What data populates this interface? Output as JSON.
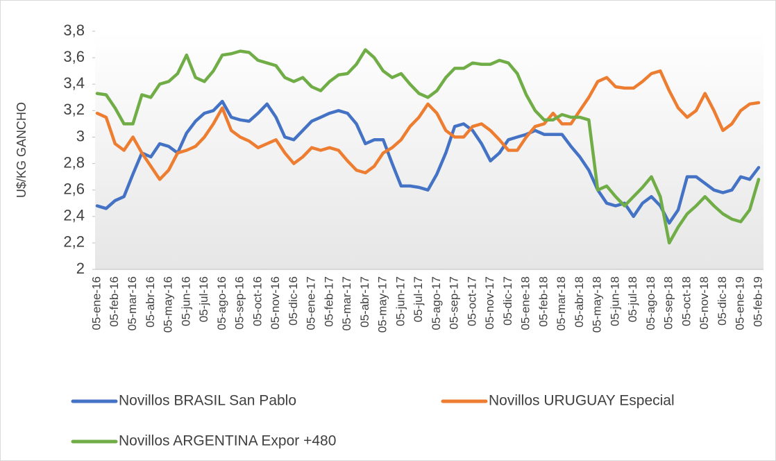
{
  "chart_data": {
    "type": "line",
    "y_label": "U$/KG GANCHO",
    "categories": [
      "05-ene-16",
      null,
      "05-feb-16",
      null,
      "05-mar-16",
      null,
      "05-abr-16",
      null,
      "05-may-16",
      null,
      "05-jun-16",
      null,
      "05-jul-16",
      null,
      "05-ago-16",
      null,
      "05-sep-16",
      null,
      "05-oct-16",
      null,
      "05-nov-16",
      null,
      "05-dic-16",
      null,
      "05-ene-17",
      null,
      "05-feb-17",
      null,
      "05-mar-17",
      null,
      "05-abr-17",
      null,
      "05-may-17",
      null,
      "05-jun-17",
      null,
      "05-jul-17",
      null,
      "05-ago-17",
      null,
      "05-sep-17",
      null,
      "05-oct-17",
      null,
      "05-nov-17",
      null,
      "05-dic-17",
      null,
      "05-ene-18",
      null,
      "05-feb-18",
      null,
      "05-mar-18",
      null,
      "05-abr-18",
      null,
      "05-may-18",
      null,
      "05-jun-18",
      null,
      "05-jul-18",
      null,
      "05-ago-18",
      null,
      "05-sep-18",
      null,
      "05-oct-18",
      null,
      "05-nov-18",
      null,
      "05-dic-18",
      null,
      "05-ene-19",
      null,
      "05-feb-19"
    ],
    "series": [
      {
        "name": "Novillos BRASIL San Pablo",
        "color": "#4472c4",
        "values": [
          2.48,
          2.46,
          2.52,
          2.55,
          2.72,
          2.88,
          2.85,
          2.95,
          2.93,
          2.88,
          3.03,
          3.12,
          3.18,
          3.2,
          3.27,
          3.15,
          3.13,
          3.12,
          3.18,
          3.25,
          3.15,
          3.0,
          2.98,
          3.05,
          3.12,
          3.15,
          3.18,
          3.2,
          3.18,
          3.1,
          2.95,
          2.98,
          2.98,
          2.8,
          2.63,
          2.63,
          2.62,
          2.6,
          2.72,
          2.88,
          3.08,
          3.1,
          3.05,
          2.95,
          2.82,
          2.88,
          2.98,
          3.0,
          3.02,
          3.05,
          3.02,
          3.02,
          3.02,
          2.93,
          2.85,
          2.75,
          2.6,
          2.5,
          2.48,
          2.5,
          2.4,
          2.5,
          2.55,
          2.48,
          2.35,
          2.45,
          2.7,
          2.7,
          2.65,
          2.6,
          2.58,
          2.6,
          2.7,
          2.68,
          2.77
        ]
      },
      {
        "name": "Novillos URUGUAY Especial",
        "color": "#ed7d31",
        "values": [
          3.18,
          3.15,
          2.95,
          2.9,
          3.0,
          2.88,
          2.78,
          2.68,
          2.75,
          2.88,
          2.9,
          2.93,
          3.0,
          3.1,
          3.22,
          3.05,
          3.0,
          2.97,
          2.92,
          2.95,
          2.98,
          2.88,
          2.8,
          2.85,
          2.92,
          2.9,
          2.92,
          2.9,
          2.82,
          2.75,
          2.73,
          2.78,
          2.88,
          2.92,
          2.98,
          3.08,
          3.15,
          3.25,
          3.18,
          3.05,
          3.0,
          3.0,
          3.08,
          3.1,
          3.05,
          2.98,
          2.9,
          2.9,
          3.0,
          3.08,
          3.1,
          3.18,
          3.1,
          3.1,
          3.2,
          3.3,
          3.42,
          3.45,
          3.38,
          3.37,
          3.37,
          3.42,
          3.48,
          3.5,
          3.35,
          3.22,
          3.15,
          3.2,
          3.33,
          3.2,
          3.05,
          3.1,
          3.2,
          3.25,
          3.26
        ]
      },
      {
        "name": "Novillos ARGENTINA Expor +480",
        "color": "#70ad47",
        "values": [
          3.33,
          3.32,
          3.22,
          3.1,
          3.1,
          3.32,
          3.3,
          3.4,
          3.42,
          3.48,
          3.62,
          3.45,
          3.42,
          3.5,
          3.62,
          3.63,
          3.65,
          3.64,
          3.58,
          3.56,
          3.54,
          3.45,
          3.42,
          3.45,
          3.38,
          3.35,
          3.42,
          3.47,
          3.48,
          3.55,
          3.66,
          3.6,
          3.5,
          3.45,
          3.48,
          3.4,
          3.33,
          3.3,
          3.35,
          3.45,
          3.52,
          3.52,
          3.56,
          3.55,
          3.55,
          3.58,
          3.56,
          3.48,
          3.32,
          3.2,
          3.13,
          3.13,
          3.17,
          3.15,
          3.15,
          3.13,
          2.6,
          2.63,
          2.55,
          2.48,
          2.55,
          2.62,
          2.7,
          2.55,
          2.2,
          2.32,
          2.42,
          2.48,
          2.55,
          2.48,
          2.42,
          2.38,
          2.36,
          2.45,
          2.68
        ]
      }
    ],
    "ylim": [
      2,
      3.8
    ],
    "yticks": [
      2,
      {
        "value": 2.2,
        "label": "2,2"
      },
      {
        "value": 2.4,
        "label": "2,4"
      },
      {
        "value": 2.6,
        "label": "2,6"
      },
      {
        "value": 2.8,
        "label": "2,8"
      },
      3,
      {
        "value": 3.2,
        "label": "3,2"
      },
      {
        "value": 3.4,
        "label": "3,4"
      },
      {
        "value": 3.6,
        "label": "3,6"
      },
      {
        "value": 3.8,
        "label": "3,8"
      }
    ],
    "legend": "bottom"
  }
}
